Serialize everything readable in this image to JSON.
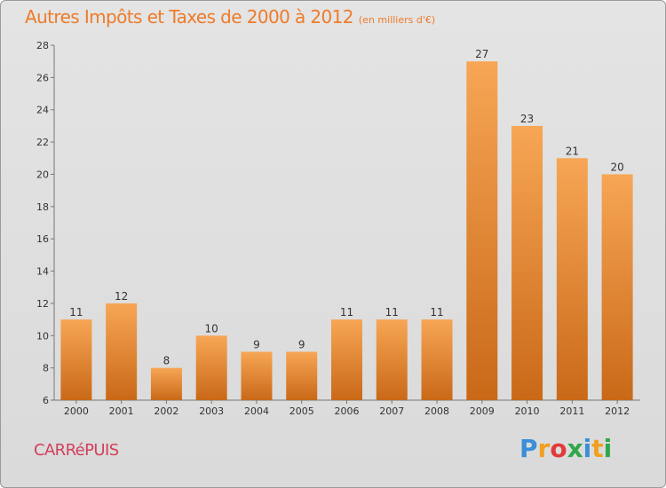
{
  "header": {
    "title": "Autres Impôts et Taxes de 2000 à 2012",
    "subtitle": "(en milliers d'€)"
  },
  "footer": {
    "commune": "CARRéPUIS",
    "logo": [
      "P",
      "r",
      "o",
      "x",
      "i",
      "t",
      "i"
    ],
    "logo_colors": [
      "#3a8fd8",
      "#f0a020",
      "#e23a3a",
      "#2fa84a",
      "#3a8fd8",
      "#f0a020",
      "#2fa84a"
    ]
  },
  "chart_data": {
    "type": "bar",
    "categories": [
      "2000",
      "2001",
      "2002",
      "2003",
      "2004",
      "2005",
      "2006",
      "2007",
      "2008",
      "2009",
      "2010",
      "2011",
      "2012"
    ],
    "values": [
      11,
      12,
      8,
      10,
      9,
      9,
      11,
      11,
      11,
      27,
      23,
      21,
      20
    ],
    "title": "Autres Impôts et Taxes de 2000 à 2012",
    "subtitle": "(en milliers d'€)",
    "xlabel": "",
    "ylabel": "",
    "ylim": [
      6,
      28
    ],
    "yticks": [
      6,
      8,
      10,
      12,
      14,
      16,
      18,
      20,
      22,
      24,
      26,
      28
    ],
    "grid": false,
    "bar_color_top": "#f7a655",
    "bar_color_bottom": "#c96918",
    "show_value_labels": true
  }
}
